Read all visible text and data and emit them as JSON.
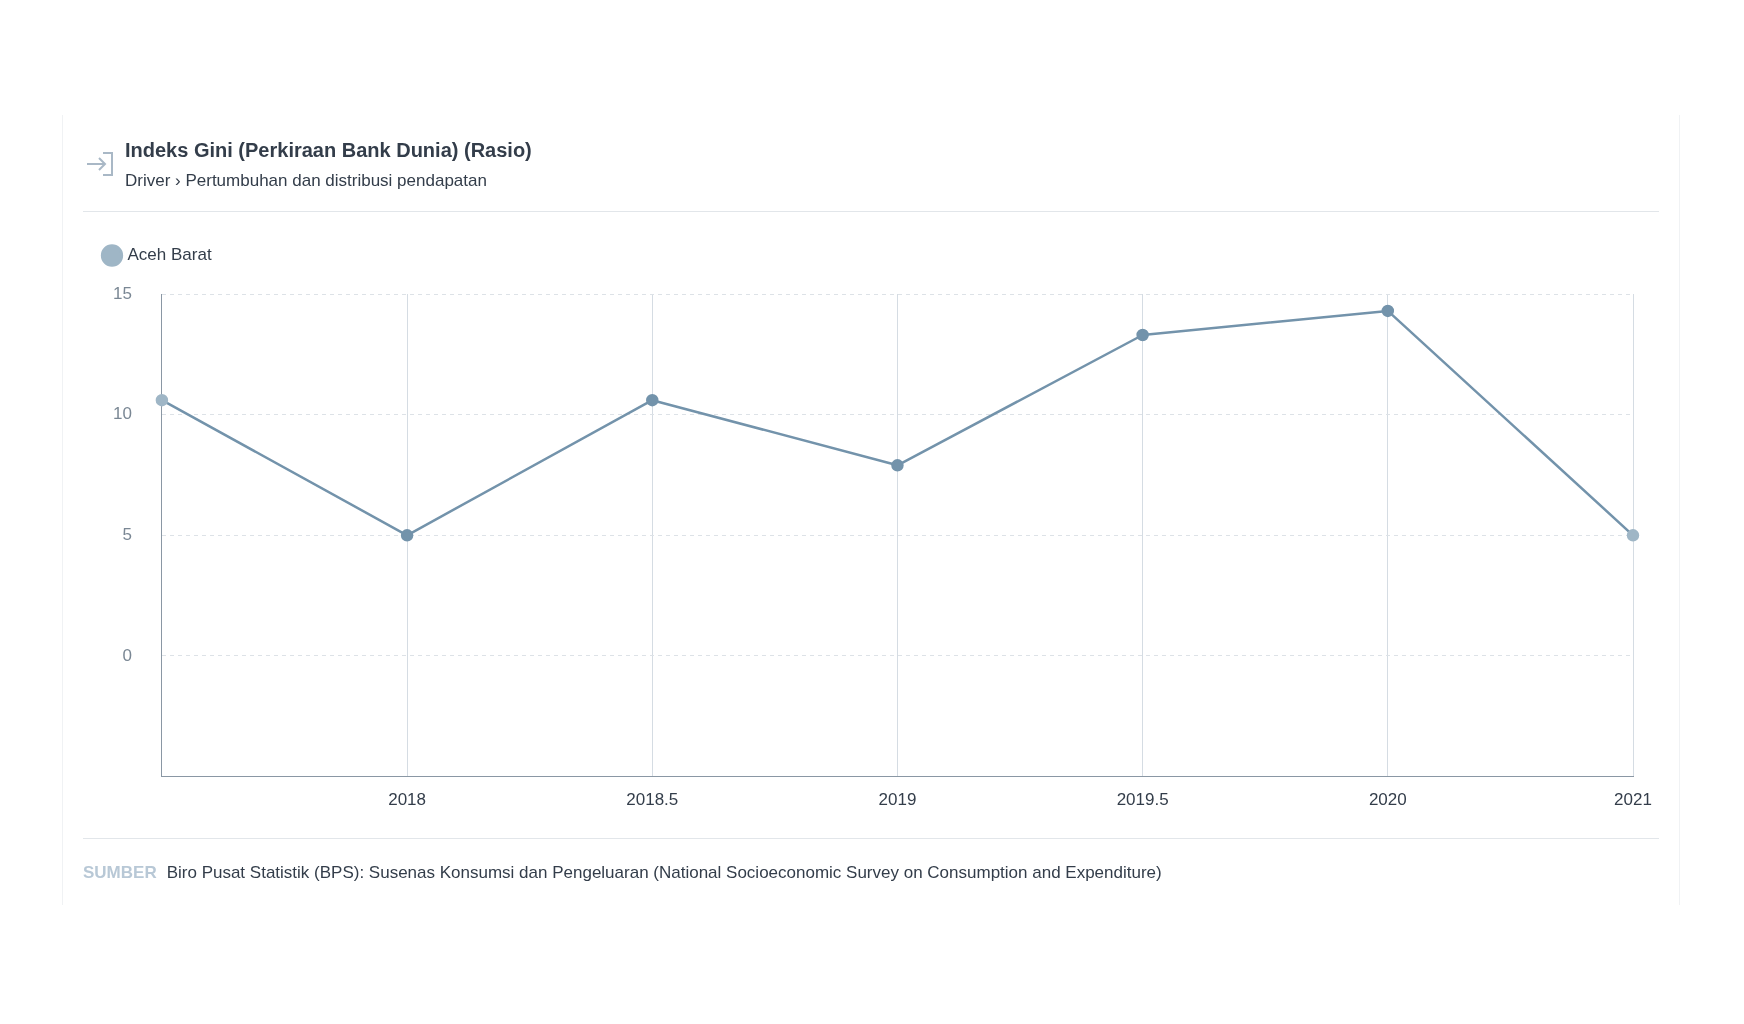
{
  "chart_data": {
    "type": "line",
    "title": "Indeks Gini (Perkiraan Bank Dunia) (Rasio)",
    "subtitle": "Driver › Pertumbuhan dan distribusi pendapatan",
    "categories": [
      null,
      "2018",
      "2018.5",
      "2019",
      "2019.5",
      "2020",
      "2021"
    ],
    "series": [
      {
        "name": "Aceh Barat",
        "color": "#7393ab",
        "colors": [
          "#9fb6c6",
          "#7393ab",
          "#7393ab",
          "#7393ab",
          "#7393ab",
          "#7393ab",
          "#9fb6c6"
        ],
        "values": [
          10.6,
          5,
          10.6,
          7.9,
          13.3,
          14.3,
          5
        ]
      }
    ],
    "ylim": [
      -5,
      15
    ],
    "yticks": [
      {
        "value": -5,
        "label": null
      },
      0,
      5,
      10,
      15
    ],
    "grid": true,
    "legend": "top left",
    "marker": "circle",
    "line_style": "solid",
    "annotations": [
      "SUMBER",
      "Biro Pusat Statistik (BPS): Susenas Konsumsi dan Pengeluaran (National Socioeconomic Survey on Consumption and Expenditure)"
    ]
  }
}
